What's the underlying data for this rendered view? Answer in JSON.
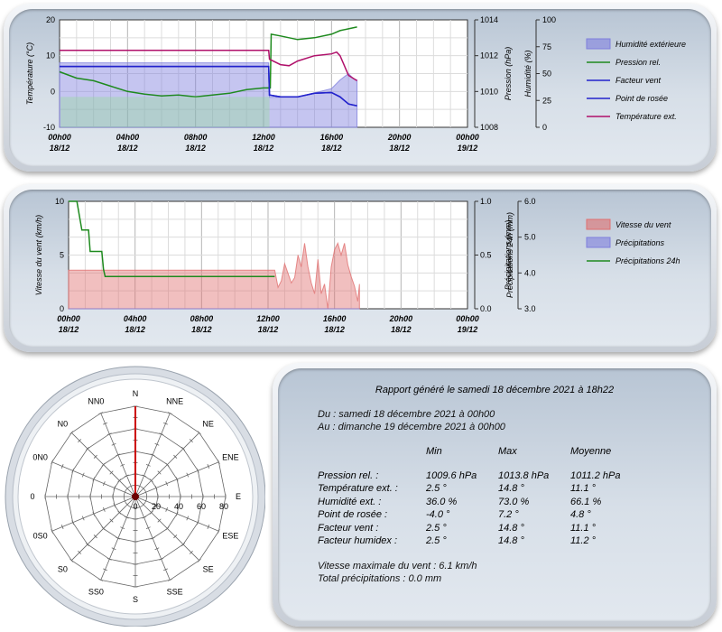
{
  "chart_data": [
    {
      "type": "line",
      "x_ticks": [
        "00h00",
        "04h00",
        "08h00",
        "12h00",
        "16h00",
        "20h00",
        "00h00"
      ],
      "x_dates": [
        "18/12",
        "18/12",
        "18/12",
        "18/12",
        "18/12",
        "18/12",
        "19/12"
      ],
      "x_range_hours": [
        0,
        24
      ],
      "ylabel_left": "Température (°C)",
      "ylim_left": [
        -10,
        20
      ],
      "yticks_left": [
        "20",
        "10",
        "0",
        "-10"
      ],
      "ylabel_right1": "Pression (hPa)",
      "ylim_right1": [
        1008,
        1014
      ],
      "yticks_right1": [
        "1014",
        "1012",
        "1010",
        "1008"
      ],
      "ylabel_right2": "Humidité (%)",
      "ylim_right2": [
        0,
        100
      ],
      "yticks_right2": [
        "100",
        "75",
        "50",
        "25",
        "0"
      ],
      "grid": true,
      "legend_position": "right",
      "series": [
        {
          "name": "Humidité extérieure",
          "kind": "area",
          "color": "#7f7fdd",
          "axis": "humidity",
          "points": [
            [
              0,
              60
            ],
            [
              12.3,
              60
            ],
            [
              12.35,
              28
            ],
            [
              14,
              28
            ],
            [
              15,
              32
            ],
            [
              16,
              36
            ],
            [
              16.5,
              44
            ],
            [
              17,
              50
            ],
            [
              17.3,
              45
            ],
            [
              17.5,
              44
            ]
          ]
        },
        {
          "name": "Pression rel.",
          "kind": "line",
          "color": "#1e8a1e",
          "axis": "pressure",
          "points": [
            [
              0,
              1011.1
            ],
            [
              1,
              1010.75
            ],
            [
              2,
              1010.6
            ],
            [
              3,
              1010.3
            ],
            [
              4,
              1010.0
            ],
            [
              5,
              1009.85
            ],
            [
              6,
              1009.75
            ],
            [
              7,
              1009.8
            ],
            [
              8,
              1009.7
            ],
            [
              9,
              1009.8
            ],
            [
              10,
              1009.9
            ],
            [
              11,
              1010.1
            ],
            [
              12,
              1010.2
            ],
            [
              12.4,
              1010.2
            ],
            [
              12.45,
              1013.2
            ],
            [
              13,
              1013.1
            ],
            [
              14,
              1012.9
            ],
            [
              15,
              1013.0
            ],
            [
              16,
              1013.2
            ],
            [
              16.5,
              1013.4
            ],
            [
              17,
              1013.5
            ],
            [
              17.5,
              1013.6
            ]
          ]
        },
        {
          "name": "Facteur vent",
          "kind": "line",
          "color": "#2222cc",
          "axis": "temperature",
          "points": [
            [
              0,
              7.0
            ],
            [
              12.3,
              7.0
            ],
            [
              12.35,
              -1.0
            ],
            [
              13,
              -1.5
            ],
            [
              14,
              -1.5
            ],
            [
              15,
              -0.5
            ],
            [
              16,
              -0.3
            ],
            [
              16.5,
              -1.5
            ],
            [
              17,
              -3.5
            ],
            [
              17.5,
              -4.0
            ]
          ]
        },
        {
          "name": "Point de rosée",
          "kind": "line",
          "color": "#2222cc",
          "axis": "temperature",
          "points": [
            [
              0,
              7.0
            ],
            [
              12.3,
              7.0
            ],
            [
              12.35,
              -1.0
            ],
            [
              13,
              -1.5
            ],
            [
              14,
              -1.5
            ],
            [
              15,
              -0.5
            ],
            [
              16,
              -0.3
            ],
            [
              16.5,
              -1.5
            ],
            [
              17,
              -3.5
            ],
            [
              17.5,
              -4.0
            ]
          ]
        },
        {
          "name": "Température ext.",
          "kind": "line",
          "color": "#b0106a",
          "axis": "temperature",
          "points": [
            [
              0,
              11.5
            ],
            [
              12.3,
              11.5
            ],
            [
              12.35,
              9.0
            ],
            [
              13,
              7.5
            ],
            [
              13.5,
              7.2
            ],
            [
              14,
              8.5
            ],
            [
              15,
              10.0
            ],
            [
              16,
              10.5
            ],
            [
              16.3,
              11.0
            ],
            [
              16.5,
              10.0
            ],
            [
              17,
              4.5
            ],
            [
              17.5,
              3.0
            ]
          ]
        }
      ]
    },
    {
      "type": "area",
      "x_ticks": [
        "00h00",
        "04h00",
        "08h00",
        "12h00",
        "16h00",
        "20h00",
        "00h00"
      ],
      "x_dates": [
        "18/12",
        "18/12",
        "18/12",
        "18/12",
        "18/12",
        "18/12",
        "19/12"
      ],
      "x_range_hours": [
        0,
        24
      ],
      "ylabel_left": "Vitesse du vent (km/h)",
      "ylim_left": [
        0,
        10
      ],
      "yticks_left": [
        "10",
        "5",
        "0"
      ],
      "ylabel_right1": "Précipitations (mm)",
      "ylim_right1": [
        0,
        1
      ],
      "yticks_right1": [
        "1.0",
        "0.5",
        "0.0"
      ],
      "ylabel_right2": "Précipitations 24h (mm)",
      "ylim_right2": [
        3,
        6
      ],
      "yticks_right2": [
        "6.0",
        "5.0",
        "4.0",
        "3.0"
      ],
      "grid": true,
      "legend_position": "right",
      "series": [
        {
          "name": "Vitesse du vent",
          "kind": "area",
          "color": "#e07070",
          "axis": "wind",
          "points": [
            [
              0,
              3.6
            ],
            [
              12.4,
              3.6
            ],
            [
              12.6,
              2.0
            ],
            [
              12.8,
              2.6
            ],
            [
              13.0,
              4.2
            ],
            [
              13.2,
              3.3
            ],
            [
              13.4,
              2.4
            ],
            [
              13.6,
              2.9
            ],
            [
              13.8,
              5.0
            ],
            [
              14.0,
              3.9
            ],
            [
              14.2,
              6.1
            ],
            [
              14.4,
              3.9
            ],
            [
              14.6,
              2.4
            ],
            [
              14.8,
              1.4
            ],
            [
              15.0,
              4.6
            ],
            [
              15.2,
              1.4
            ],
            [
              15.4,
              2.3
            ],
            [
              15.6,
              0.0
            ],
            [
              15.8,
              3.9
            ],
            [
              16.0,
              5.5
            ],
            [
              16.2,
              6.1
            ],
            [
              16.4,
              5.0
            ],
            [
              16.6,
              6.1
            ],
            [
              16.8,
              4.1
            ],
            [
              17.0,
              3.0
            ],
            [
              17.2,
              2.1
            ],
            [
              17.4,
              0.7
            ],
            [
              17.5,
              2.3
            ]
          ]
        },
        {
          "name": "Précipitations",
          "kind": "area",
          "color": "#7f7fdd",
          "axis": "rain",
          "points": [
            [
              0,
              0
            ],
            [
              17.5,
              0
            ]
          ]
        },
        {
          "name": "Précipitations 24h",
          "kind": "line",
          "color": "#1e8a1e",
          "axis": "rain24",
          "points": [
            [
              0,
              6.0
            ],
            [
              0.5,
              6.0
            ],
            [
              0.8,
              5.2
            ],
            [
              1.2,
              5.2
            ],
            [
              1.3,
              4.6
            ],
            [
              2.0,
              4.6
            ],
            [
              2.1,
              4.1
            ],
            [
              2.2,
              3.9
            ],
            [
              12.4,
              3.9
            ]
          ]
        }
      ]
    },
    {
      "type": "radar",
      "directions": [
        "N",
        "NNE",
        "NE",
        "ENE",
        "E",
        "ESE",
        "SE",
        "SSE",
        "S",
        "SS0",
        "S0",
        "0S0",
        "0",
        "0N0",
        "N0",
        "NN0"
      ],
      "radial_ticks": [
        "0",
        "20",
        "40",
        "60",
        "80"
      ],
      "rmax": 80,
      "values": [
        80,
        0,
        0,
        0,
        0,
        0,
        0,
        0,
        0,
        0,
        0,
        0,
        0,
        0,
        0,
        0
      ],
      "line_color": "#cc0000"
    }
  ],
  "report": {
    "title": "Rapport généré le samedi 18 décembre 2021 à 18h22",
    "from": "Du : samedi 18 décembre 2021 à 00h00",
    "to": "Au : dimanche 19 décembre 2021 à 00h00",
    "headers": [
      "",
      "Min",
      "Max",
      "Moyenne"
    ],
    "rows": [
      [
        "Pression rel. :",
        "1009.6 hPa",
        "1013.8 hPa",
        "1011.2 hPa"
      ],
      [
        "Température ext. :",
        "2.5 °",
        "14.8 °",
        "11.1 °"
      ],
      [
        "Humidité ext. :",
        "36.0 %",
        "73.0 %",
        "66.1 %"
      ],
      [
        "Point de rosée :",
        "-4.0 °",
        "7.2 °",
        "4.8 °"
      ],
      [
        "Facteur vent :",
        "2.5 °",
        "14.8 °",
        "11.1 °"
      ],
      [
        "Facteur humidex :",
        "2.5 °",
        "14.8 °",
        "11.2 °"
      ]
    ],
    "max_wind": "Vitesse maximale du vent : 6.1 km/h",
    "total_rain": "Total précipitations : 0.0 mm"
  }
}
